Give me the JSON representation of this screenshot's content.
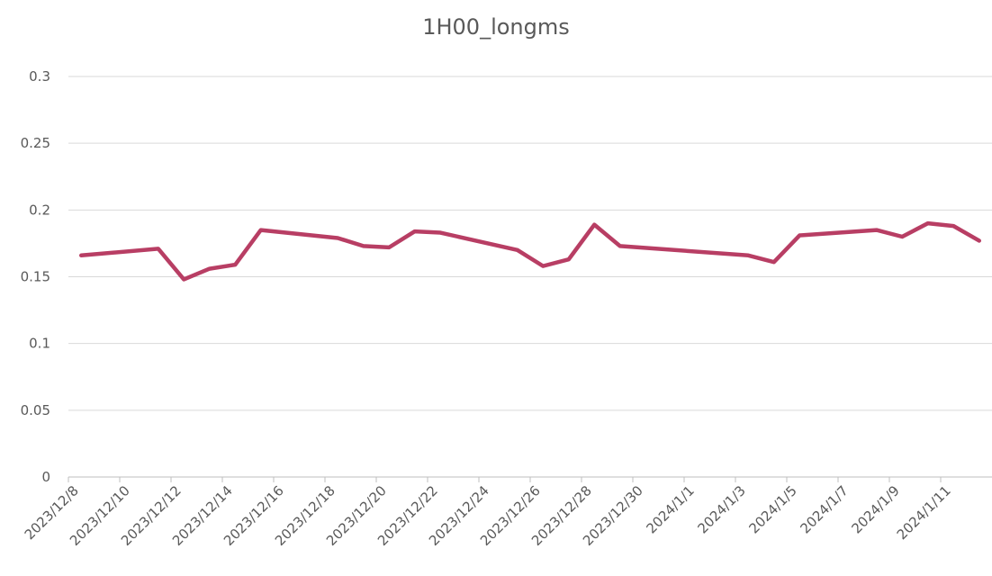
{
  "chart_data": {
    "type": "line",
    "title": "1H00_longms",
    "x": [
      "2023/12/8",
      "2023/12/11",
      "2023/12/12",
      "2023/12/13",
      "2023/12/14",
      "2023/12/15",
      "2023/12/18",
      "2023/12/19",
      "2023/12/20",
      "2023/12/21",
      "2023/12/22",
      "2023/12/25",
      "2023/12/26",
      "2023/12/27",
      "2023/12/28",
      "2023/12/29",
      "2024/1/3",
      "2024/1/4",
      "2024/1/5",
      "2024/1/8",
      "2024/1/9",
      "2024/1/10",
      "2024/1/11",
      "2024/1/12"
    ],
    "series": [
      {
        "name": "1H00_longms",
        "color": "#b83e64",
        "values": [
          0.166,
          0.171,
          0.148,
          0.156,
          0.159,
          0.185,
          0.179,
          0.173,
          0.172,
          0.184,
          0.183,
          0.17,
          0.158,
          0.163,
          0.189,
          0.173,
          0.166,
          0.161,
          0.181,
          0.185,
          0.18,
          0.19,
          0.188,
          0.177
        ]
      }
    ],
    "xticks": [
      "2023/12/8",
      "2023/12/10",
      "2023/12/12",
      "2023/12/14",
      "2023/12/16",
      "2023/12/18",
      "2023/12/20",
      "2023/12/22",
      "2023/12/24",
      "2023/12/26",
      "2023/12/28",
      "2023/12/30",
      "2024/1/1",
      "2024/1/3",
      "2024/1/5",
      "2024/1/7",
      "2024/1/9",
      "2024/1/11"
    ],
    "ylim": [
      0,
      0.3
    ],
    "yticks": [
      0,
      0.05,
      0.1,
      0.15,
      0.2,
      0.25,
      0.3
    ],
    "grid": true
  }
}
